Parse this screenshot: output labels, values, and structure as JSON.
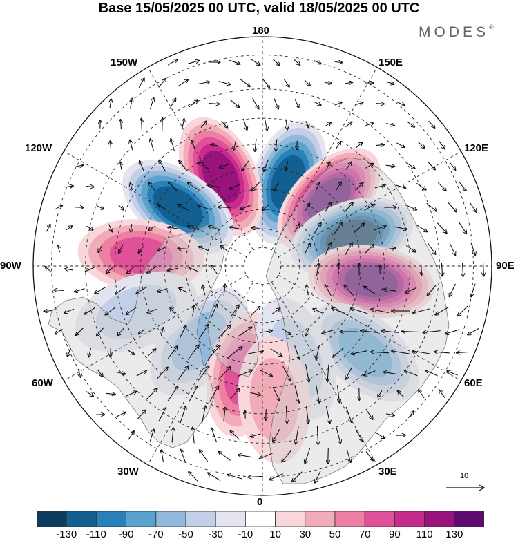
{
  "title": "Base 15/05/2025 00 UTC, valid 18/05/2025 00 UTC",
  "brand": "MODES",
  "brand_mark": "®",
  "lon_labels": {
    "n180": "180",
    "e150": "150E",
    "e120": "120E",
    "e90": "90E",
    "e60": "60E",
    "e30": "30E",
    "n0": "0",
    "w30": "30W",
    "w60": "60W",
    "w90": "90W",
    "w120": "120W",
    "w150": "150W"
  },
  "reference_vector": {
    "value": "10"
  },
  "colorbar": {
    "labels": [
      "-130",
      "-110",
      "-90",
      "-70",
      "-50",
      "-30",
      "-10",
      "10",
      "30",
      "50",
      "70",
      "90",
      "110",
      "130"
    ],
    "colors": [
      "#0d3b5e",
      "#135f91",
      "#2a80b8",
      "#5aa3cf",
      "#92b9dc",
      "#c2cfe6",
      "#e4e3f0",
      "#ffffff",
      "#f8d6da",
      "#f2acb8",
      "#ec7fa2",
      "#e0519a",
      "#c72b8e",
      "#99137d",
      "#5e0a6e"
    ]
  },
  "map_data": {
    "projection": "north polar stereographic",
    "anomalies": [
      {
        "center_lon": 163,
        "center_lat": 45,
        "value": -110
      },
      {
        "center_lon": -155,
        "center_lat": 40,
        "value": 110
      },
      {
        "center_lon": 135,
        "center_lat": 42,
        "value": 120
      },
      {
        "center_lon": -125,
        "center_lat": 38,
        "value": -95
      },
      {
        "center_lon": 108,
        "center_lat": 42,
        "value": -120
      },
      {
        "center_lon": 82,
        "center_lat": 35,
        "value": 120
      },
      {
        "center_lon": -95,
        "center_lat": 30,
        "value": 60
      },
      {
        "center_lon": 50,
        "center_lat": 25,
        "value": -60
      },
      {
        "center_lon": -40,
        "center_lat": 40,
        "value": -50
      },
      {
        "center_lon": -10,
        "center_lat": 35,
        "value": 60
      },
      {
        "center_lon": 20,
        "center_lat": 40,
        "value": -30
      },
      {
        "center_lon": 5,
        "center_lat": 25,
        "value": 30
      },
      {
        "center_lon": -70,
        "center_lat": 25,
        "value": -30
      }
    ]
  }
}
